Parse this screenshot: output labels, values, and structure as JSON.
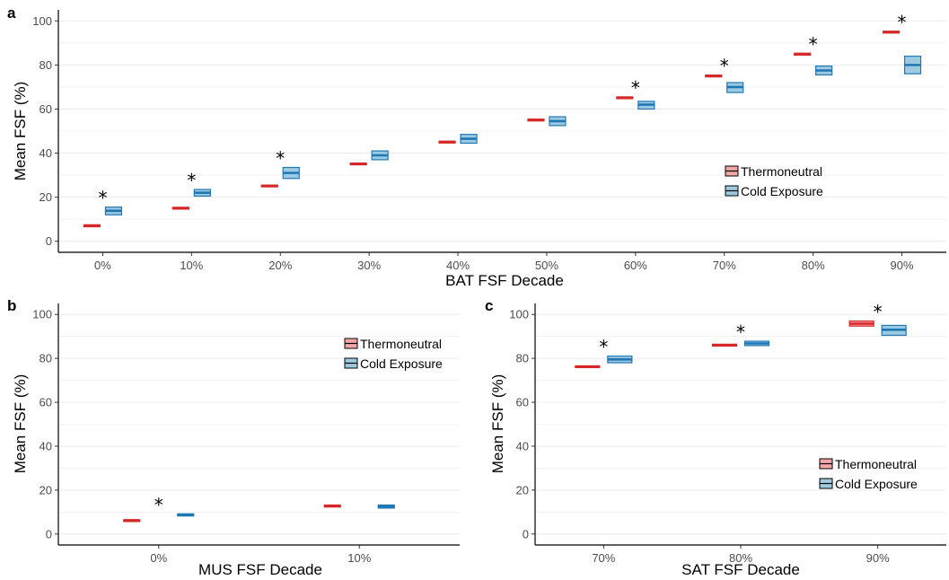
{
  "colors": {
    "thermoneutral_line": "#d62728",
    "thermoneutral_fill": "#f4a6a6",
    "cold_line": "#1f77b4",
    "cold_fill": "#9ecae1",
    "grid": "#ebebeb",
    "axis": "#000000"
  },
  "chart_data": [
    {
      "panel": "a",
      "type": "box",
      "xlabel": "BAT FSF Decade",
      "ylabel": "Mean FSF (%)",
      "ylim": [
        -5,
        105
      ],
      "yticks": [
        0,
        20,
        40,
        60,
        80,
        100
      ],
      "categories": [
        "0%",
        "10%",
        "20%",
        "30%",
        "40%",
        "50%",
        "60%",
        "70%",
        "80%",
        "90%"
      ],
      "legend": {
        "position": "right-middle",
        "entries": [
          "Thermoneutral",
          "Cold Exposure"
        ]
      },
      "series": [
        {
          "name": "Thermoneutral",
          "boxes": [
            [
              6.8,
              7.2,
              7.4
            ],
            [
              14.8,
              15.1,
              15.4
            ],
            [
              24.8,
              25.2,
              25.5
            ],
            [
              34.8,
              35.2,
              35.5
            ],
            [
              44.8,
              45.1,
              45.4
            ],
            [
              54.8,
              55.1,
              55.4
            ],
            [
              64.8,
              65.2,
              65.5
            ],
            [
              74.7,
              75.1,
              75.4
            ],
            [
              84.7,
              85.0,
              85.3
            ],
            [
              94.6,
              95.0,
              95.3
            ]
          ]
        },
        {
          "name": "Cold Exposure",
          "boxes": [
            [
              12.0,
              13.8,
              15.5
            ],
            [
              20.5,
              22.0,
              23.5
            ],
            [
              28.5,
              31.0,
              33.5
            ],
            [
              37.0,
              39.0,
              41.0
            ],
            [
              44.5,
              46.5,
              48.5
            ],
            [
              52.5,
              54.5,
              56.5
            ],
            [
              60.0,
              62.0,
              63.5
            ],
            [
              67.5,
              70.0,
              72.0
            ],
            [
              75.5,
              77.5,
              79.5
            ],
            [
              76.0,
              80.0,
              84.0
            ]
          ]
        }
      ],
      "significant": [
        true,
        true,
        true,
        false,
        false,
        false,
        true,
        true,
        true,
        true
      ],
      "annotation": "*"
    },
    {
      "panel": "b",
      "type": "box",
      "xlabel": "MUS FSF Decade",
      "ylabel": "Mean FSF (%)",
      "ylim": [
        -5,
        105
      ],
      "yticks": [
        0,
        20,
        40,
        60,
        80,
        100
      ],
      "categories": [
        "0%",
        "10%"
      ],
      "legend": {
        "position": "top-right",
        "entries": [
          "Thermoneutral",
          "Cold Exposure"
        ]
      },
      "series": [
        {
          "name": "Thermoneutral",
          "boxes": [
            [
              5.8,
              6.2,
              6.5
            ],
            [
              12.3,
              12.8,
              13.2
            ]
          ]
        },
        {
          "name": "Cold Exposure",
          "boxes": [
            [
              8.2,
              8.8,
              9.2
            ],
            [
              11.8,
              12.5,
              13.2
            ]
          ]
        }
      ],
      "significant": [
        true,
        false
      ],
      "annotation": "*"
    },
    {
      "panel": "c",
      "type": "box",
      "xlabel": "SAT FSF Decade",
      "ylabel": "Mean FSF (%)",
      "ylim": [
        -5,
        105
      ],
      "yticks": [
        0,
        20,
        40,
        60,
        80,
        100
      ],
      "categories": [
        "70%",
        "80%",
        "90%"
      ],
      "legend": {
        "position": "bottom-right",
        "entries": [
          "Thermoneutral",
          "Cold Exposure"
        ]
      },
      "series": [
        {
          "name": "Thermoneutral",
          "boxes": [
            [
              75.8,
              76.2,
              76.6
            ],
            [
              85.7,
              86.1,
              86.4
            ],
            [
              94.7,
              95.8,
              97.0
            ]
          ]
        },
        {
          "name": "Cold Exposure",
          "boxes": [
            [
              78.0,
              79.5,
              81.0
            ],
            [
              85.8,
              86.8,
              87.8
            ],
            [
              90.5,
              93.0,
              95.0
            ]
          ]
        }
      ],
      "significant": [
        true,
        true,
        true
      ],
      "annotation": "*"
    }
  ]
}
